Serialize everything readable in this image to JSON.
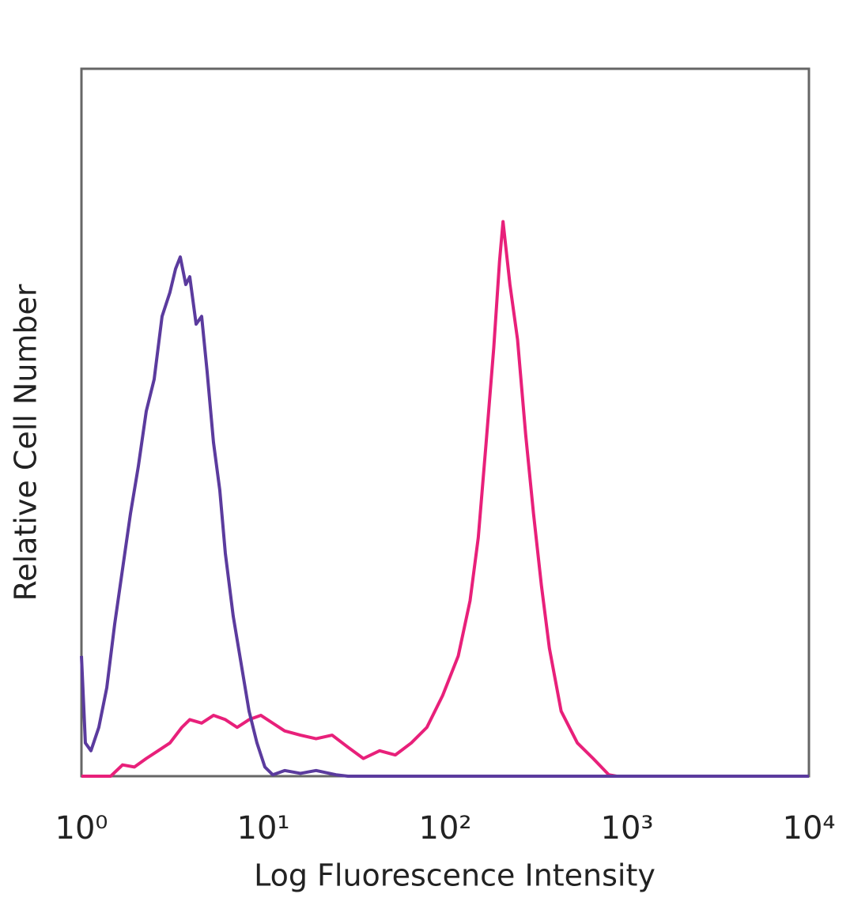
{
  "chart_data": {
    "type": "line",
    "x_label": "Log Fluorescence Intensity",
    "y_label": "Relative Cell Number",
    "log_x": true,
    "grid": false,
    "xlim": [
      1,
      10000
    ],
    "ylim": [
      0,
      100
    ],
    "xticks": [
      {
        "value": 1,
        "label": "10⁰"
      },
      {
        "value": 10,
        "label": "10¹"
      },
      {
        "value": 100,
        "label": "10²"
      },
      {
        "value": 1000,
        "label": "10³"
      },
      {
        "value": 10000,
        "label": "10⁴"
      }
    ],
    "series": [
      {
        "color": "#5b3b9e",
        "x": [
          1,
          1.051,
          1.128,
          1.246,
          1.378,
          1.523,
          1.683,
          1.86,
          2.055,
          2.272,
          2.511,
          2.775,
          3.066,
          3.291,
          3.494,
          3.747,
          3.941,
          4.271,
          4.58,
          4.909,
          5.32,
          5.765,
          6.183,
          6.833,
          7.553,
          8.348,
          9.226,
          10.2,
          11.27,
          13.1,
          16,
          19.5,
          25.1,
          29.2,
          10000
        ],
        "values": [
          17,
          4.7,
          3.6,
          6.9,
          12.5,
          21.5,
          29.3,
          37.1,
          43.8,
          51.6,
          56.1,
          65,
          68.4,
          71.7,
          73.4,
          69.5,
          70.6,
          63.9,
          65,
          57.2,
          47.2,
          40.4,
          31.5,
          22.6,
          15.9,
          9.2,
          4.7,
          1.3,
          0.2,
          0.8,
          0.4,
          0.8,
          0.2,
          0,
          0
        ]
      },
      {
        "color": "#e8207a",
        "x": [
          1,
          1.448,
          1.683,
          1.955,
          2.272,
          2.64,
          3.066,
          3.565,
          3.941,
          4.58,
          5.32,
          6.183,
          7.18,
          8.35,
          9.7,
          11.27,
          13.1,
          16,
          19.5,
          23.9,
          29.2,
          35.5,
          43.6,
          53.2,
          65.1,
          79.3,
          96.8,
          118,
          137,
          152,
          168,
          185,
          199,
          208,
          227,
          250,
          277,
          306,
          338,
          374,
          434,
          533,
          651,
          794,
          876
        ],
        "values": [
          0,
          0,
          1.6,
          1.3,
          2.5,
          3.6,
          4.7,
          6.9,
          8,
          7.5,
          8.6,
          8,
          6.9,
          8,
          8.6,
          7.5,
          6.4,
          5.8,
          5.3,
          5.8,
          4.1,
          2.5,
          3.6,
          3,
          4.7,
          6.9,
          11.4,
          17,
          24.8,
          33.7,
          47.2,
          60.6,
          72.8,
          78.4,
          69.5,
          61.7,
          48.3,
          37.1,
          27,
          18.1,
          9.2,
          4.7,
          2.5,
          0.2,
          0
        ]
      }
    ]
  }
}
